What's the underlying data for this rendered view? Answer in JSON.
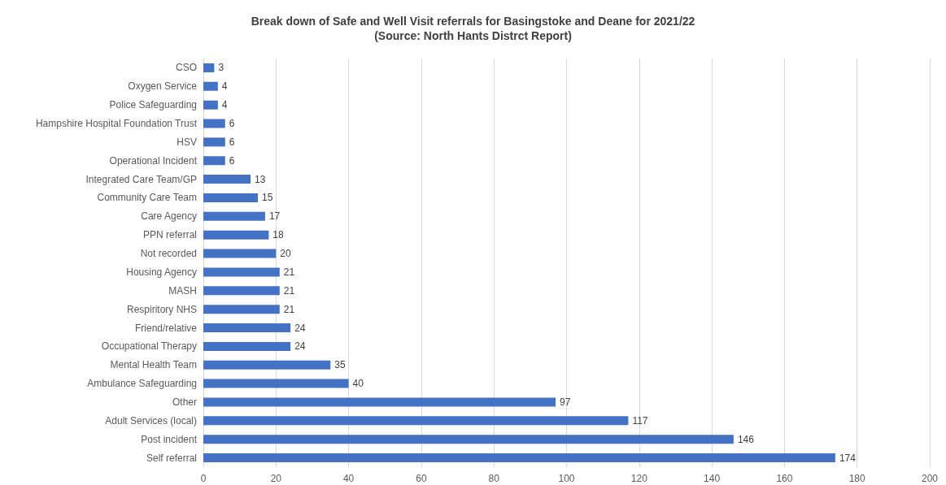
{
  "chart_data": {
    "type": "bar",
    "orientation": "horizontal",
    "title": "Break down of Safe and Well Visit referrals for Basingstoke and Deane for 2021/22",
    "subtitle": "(Source: North Hants Distrct Report)",
    "categories": [
      "CSO",
      "Oxygen Service",
      "Police Safeguarding",
      "Hampshire Hospital Foundation Trust",
      "HSV",
      "Operational Incident",
      "Integrated Care Team/GP",
      "Community Care Team",
      "Care Agency",
      "PPN referral",
      "Not recorded",
      "Housing Agency",
      "MASH",
      "Respiritory NHS",
      "Friend/relative",
      "Occupational Therapy",
      "Mental Health Team",
      "Ambulance Safeguarding",
      "Other",
      "Adult Services (local)",
      "Post incident",
      "Self referral"
    ],
    "values": [
      3,
      4,
      4,
      6,
      6,
      6,
      13,
      15,
      17,
      18,
      20,
      21,
      21,
      21,
      24,
      24,
      35,
      40,
      97,
      117,
      146,
      174
    ],
    "color": "#4472c4",
    "xlim": [
      0,
      200
    ],
    "xticks": [
      0,
      20,
      40,
      60,
      80,
      100,
      120,
      140,
      160,
      180,
      200
    ],
    "grid": "x",
    "data_labels": true
  }
}
